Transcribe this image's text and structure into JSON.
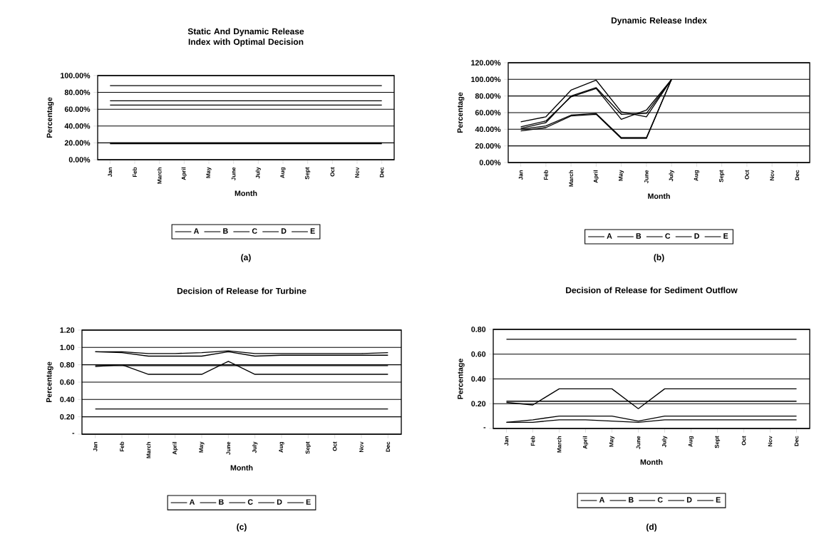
{
  "chart_data": [
    {
      "type": "line",
      "title": "Static And Dynamic Release Index with Optimal Decision",
      "xlabel": "Month",
      "ylabel": "Percentage",
      "categories": [
        "Jan",
        "Feb",
        "March",
        "April",
        "May",
        "June",
        "July",
        "Aug",
        "Sept",
        "Oct",
        "Nov",
        "Dec"
      ],
      "series": [
        {
          "name": "A",
          "color": "#000000",
          "values": [
            19,
            19,
            19,
            19,
            19,
            19,
            19,
            19,
            19,
            19,
            19,
            19
          ]
        },
        {
          "name": "B",
          "color": "#000000",
          "values": [
            65,
            65,
            65,
            65,
            65,
            65,
            65,
            65,
            65,
            65,
            65,
            65
          ]
        },
        {
          "name": "C",
          "color": "#000000",
          "values": [
            70,
            70,
            70,
            70,
            70,
            70,
            70,
            70,
            70,
            70,
            70,
            70
          ]
        },
        {
          "name": "D",
          "color": "#000000",
          "values": [
            88,
            88,
            88,
            88,
            88,
            88,
            88,
            88,
            88,
            88,
            88,
            88
          ]
        },
        {
          "name": "E",
          "color": "#000000",
          "values": [
            20,
            20,
            20,
            20,
            20,
            20,
            20,
            20,
            20,
            20,
            20,
            20
          ]
        }
      ],
      "ylim": [
        0,
        100
      ],
      "yticks": [
        {
          "value": 0,
          "label": "0.00%"
        },
        {
          "value": 20,
          "label": "20.00%"
        },
        {
          "value": 40,
          "label": "40.00%"
        },
        {
          "value": 60,
          "label": "60.00%"
        },
        {
          "value": 80,
          "label": "80.00%"
        },
        {
          "value": 100,
          "label": "100.00%"
        }
      ],
      "grid": "y",
      "legend": "bottom",
      "annotations": [
        "(a)"
      ]
    },
    {
      "type": "line",
      "title": "Dynamic Release Index",
      "xlabel": "Month",
      "ylabel": "Percentage",
      "categories": [
        "Jan",
        "Feb",
        "March",
        "April",
        "May",
        "June",
        "July",
        "Aug",
        "Sept",
        "Oct",
        "Nov",
        "Dec"
      ],
      "series": [
        {
          "name": "A",
          "color": "#000000",
          "values": [
            38,
            42,
            56,
            58,
            29,
            29,
            100,
            null,
            null,
            null,
            null,
            null
          ]
        },
        {
          "name": "B",
          "color": "#000000",
          "values": [
            43,
            50,
            79,
            89,
            52,
            63,
            100,
            null,
            null,
            null,
            null,
            null
          ]
        },
        {
          "name": "C",
          "color": "#000000",
          "values": [
            49,
            55,
            87,
            99,
            61,
            55,
            100,
            null,
            null,
            null,
            null,
            null
          ]
        },
        {
          "name": "D",
          "color": "#000000",
          "values": [
            41,
            48,
            80,
            90,
            58,
            59,
            100,
            null,
            null,
            null,
            null,
            null
          ]
        },
        {
          "name": "E",
          "color": "#000000",
          "values": [
            40,
            44,
            57,
            59,
            30,
            30,
            100,
            null,
            null,
            null,
            null,
            null
          ]
        }
      ],
      "ylim": [
        0,
        120
      ],
      "yticks": [
        {
          "value": 0,
          "label": "0.00%"
        },
        {
          "value": 20,
          "label": "20.00%"
        },
        {
          "value": 40,
          "label": "40.00%"
        },
        {
          "value": 60,
          "label": "60.00%"
        },
        {
          "value": 80,
          "label": "80.00%"
        },
        {
          "value": 100,
          "label": "100.00%"
        },
        {
          "value": 120,
          "label": "120.00%"
        }
      ],
      "grid": "y",
      "legend": "bottom",
      "annotations": [
        "(b)"
      ]
    },
    {
      "type": "line",
      "title": "Decision of Release for Turbine",
      "xlabel": "Month",
      "ylabel": "Percentage",
      "categories": [
        "Jan",
        "Feb",
        "March",
        "April",
        "May",
        "June",
        "July",
        "Aug",
        "Sept",
        "Oct",
        "Nov",
        "Dec"
      ],
      "series": [
        {
          "name": "A",
          "color": "#000000",
          "values": [
            0.29,
            0.29,
            0.29,
            0.29,
            0.29,
            0.29,
            0.29,
            0.29,
            0.29,
            0.29,
            0.29,
            0.29
          ]
        },
        {
          "name": "B",
          "color": "#000000",
          "values": [
            0.78,
            0.8,
            0.69,
            0.69,
            0.69,
            0.84,
            0.69,
            0.69,
            0.69,
            0.69,
            0.69,
            0.69
          ]
        },
        {
          "name": "C",
          "color": "#000000",
          "values": [
            0.79,
            0.79,
            0.79,
            0.79,
            0.79,
            0.79,
            0.79,
            0.79,
            0.79,
            0.79,
            0.79,
            0.79
          ]
        },
        {
          "name": "D",
          "color": "#000000",
          "values": [
            0.95,
            0.94,
            0.9,
            0.9,
            0.9,
            0.95,
            0.9,
            0.91,
            0.91,
            0.91,
            0.91,
            0.91
          ]
        },
        {
          "name": "E",
          "color": "#000000",
          "values": [
            0.95,
            0.95,
            0.93,
            0.93,
            0.94,
            0.96,
            0.93,
            0.93,
            0.93,
            0.93,
            0.93,
            0.94
          ]
        }
      ],
      "ylim": [
        0,
        1.2
      ],
      "yticks": [
        {
          "value": 0,
          "label": "-"
        },
        {
          "value": 0.2,
          "label": "0.20"
        },
        {
          "value": 0.4,
          "label": "0.40"
        },
        {
          "value": 0.6,
          "label": "0.60"
        },
        {
          "value": 0.8,
          "label": "0.80"
        },
        {
          "value": 1,
          "label": "1.00"
        },
        {
          "value": 1.2,
          "label": "1.20"
        }
      ],
      "grid": "y",
      "legend": "bottom",
      "annotations": [
        "(c)"
      ]
    },
    {
      "type": "line",
      "title": "Decision of Release for Sediment Outflow",
      "xlabel": "Month",
      "ylabel": "Percentage",
      "categories": [
        "Jan",
        "Feb",
        "March",
        "April",
        "May",
        "June",
        "July",
        "Aug",
        "Sept",
        "Oct",
        "Nov",
        "Dec"
      ],
      "series": [
        {
          "name": "A",
          "color": "#000000",
          "values": [
            0.05,
            0.05,
            0.07,
            0.07,
            0.06,
            0.05,
            0.07,
            0.07,
            0.07,
            0.07,
            0.07,
            0.07
          ]
        },
        {
          "name": "B",
          "color": "#000000",
          "values": [
            0.05,
            0.07,
            0.1,
            0.1,
            0.1,
            0.06,
            0.1,
            0.1,
            0.1,
            0.1,
            0.1,
            0.1
          ]
        },
        {
          "name": "C",
          "color": "#000000",
          "values": [
            0.21,
            0.19,
            0.32,
            0.32,
            0.32,
            0.16,
            0.32,
            0.32,
            0.32,
            0.32,
            0.32,
            0.32
          ]
        },
        {
          "name": "D",
          "color": "#000000",
          "values": [
            0.22,
            0.22,
            0.22,
            0.22,
            0.22,
            0.22,
            0.22,
            0.22,
            0.22,
            0.22,
            0.22,
            0.22
          ]
        },
        {
          "name": "E",
          "color": "#000000",
          "values": [
            0.72,
            0.72,
            0.72,
            0.72,
            0.72,
            0.72,
            0.72,
            0.72,
            0.72,
            0.72,
            0.72,
            0.72
          ]
        }
      ],
      "ylim": [
        0,
        0.8
      ],
      "yticks": [
        {
          "value": 0,
          "label": "-"
        },
        {
          "value": 0.2,
          "label": "0.20"
        },
        {
          "value": 0.4,
          "label": "0.40"
        },
        {
          "value": 0.6,
          "label": "0.60"
        },
        {
          "value": 0.8,
          "label": "0.80"
        }
      ],
      "grid": "y",
      "legend": "bottom",
      "annotations": [
        "(d)"
      ]
    }
  ]
}
